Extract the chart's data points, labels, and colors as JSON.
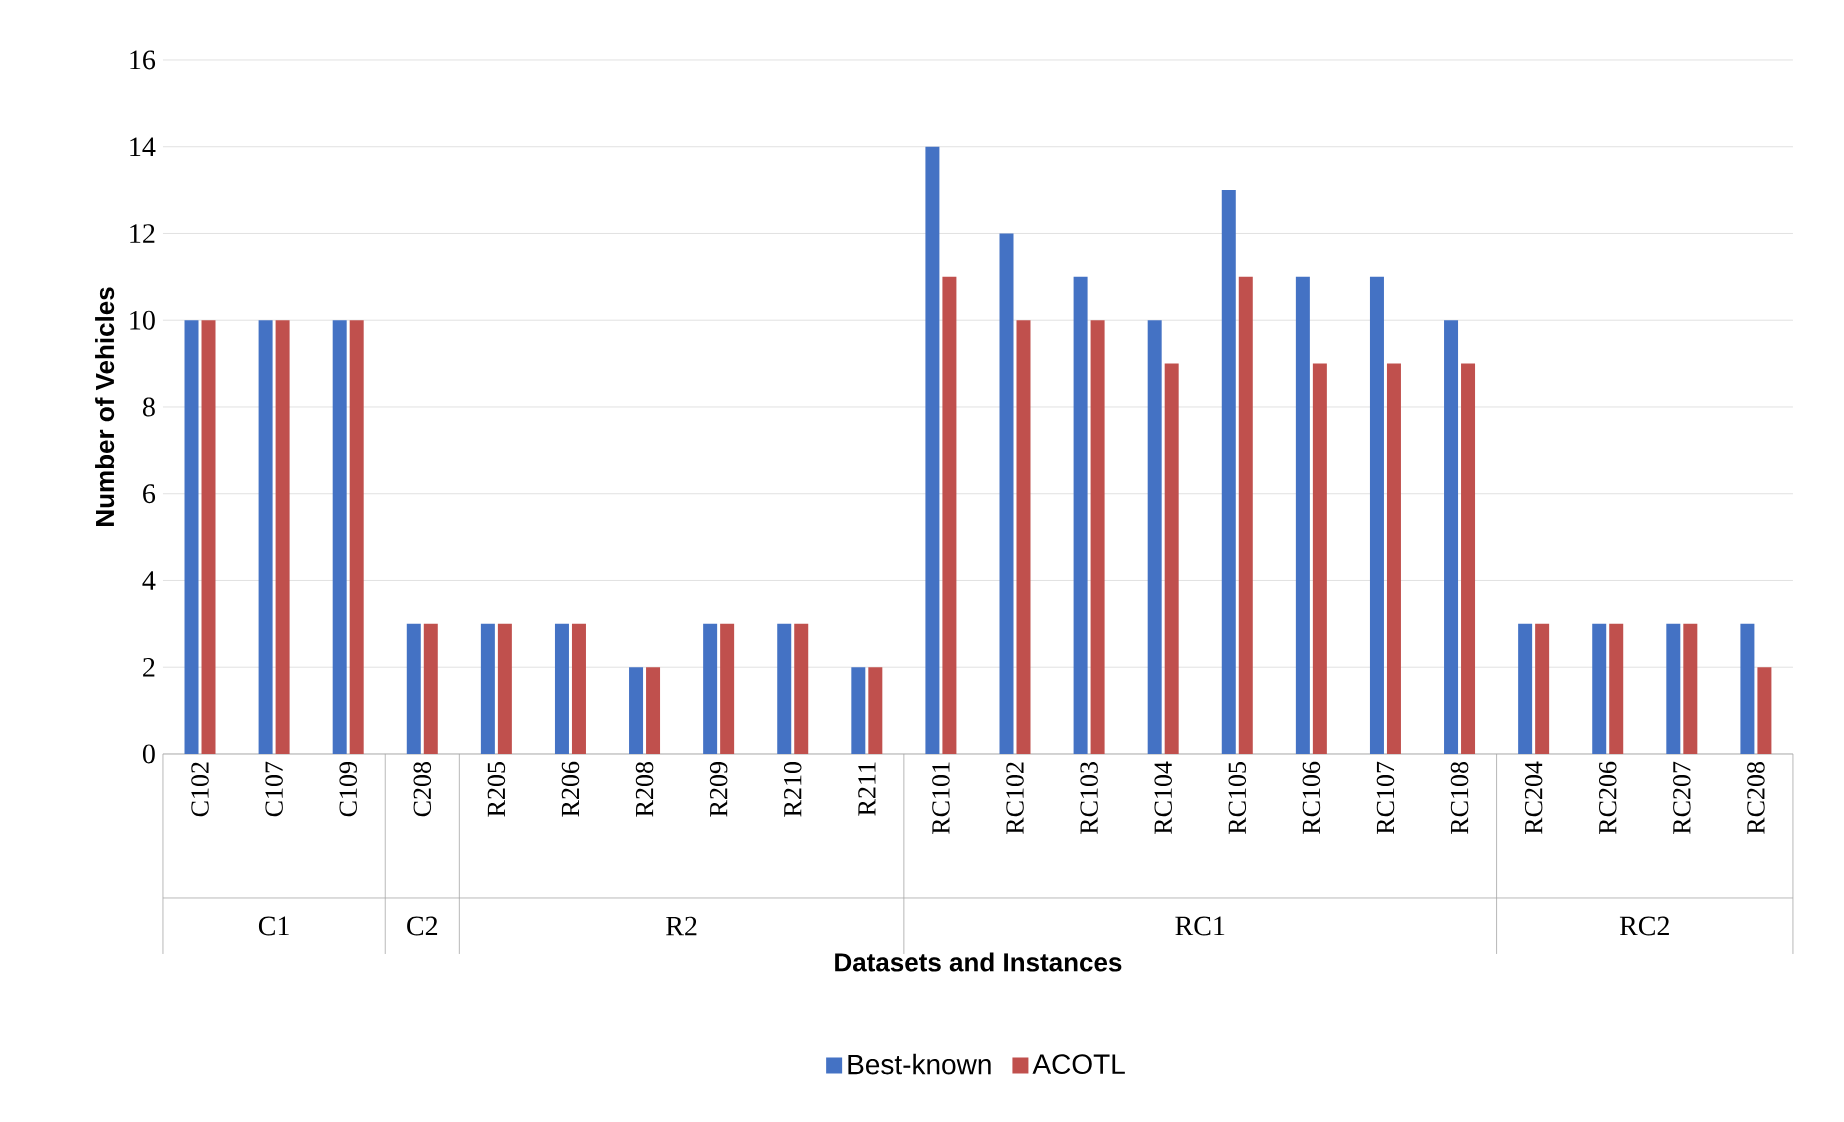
{
  "chart_data": {
    "type": "bar",
    "xlabel": "Datasets and Instances",
    "ylabel": "Number of Vehicles",
    "categories": [
      "C102",
      "C107",
      "C109",
      "C208",
      "R205",
      "R206",
      "R208",
      "R209",
      "R210",
      "R211",
      "RC101",
      "RC102",
      "RC103",
      "RC104",
      "RC105",
      "RC106",
      "RC107",
      "RC108",
      "RC204",
      "RC206",
      "RC207",
      "RC208"
    ],
    "series": [
      {
        "name": "Best-known",
        "color": "#4472c4",
        "values": [
          10,
          10,
          10,
          3,
          3,
          3,
          2,
          3,
          3,
          2,
          14,
          12,
          11,
          10,
          13,
          11,
          11,
          10,
          3,
          3,
          3,
          3
        ]
      },
      {
        "name": "ACOTL",
        "color": "#c0504d",
        "values": [
          10,
          10,
          10,
          3,
          3,
          3,
          2,
          3,
          3,
          2,
          11,
          10,
          10,
          9,
          11,
          9,
          9,
          9,
          3,
          3,
          3,
          2
        ]
      }
    ],
    "annotations": [
      "C1",
      "C2",
      "R2",
      "RC1",
      "RC2"
    ],
    "ylim": [
      0,
      16
    ],
    "yticks": [
      0,
      2,
      4,
      6,
      8,
      10,
      12,
      14,
      16
    ],
    "grid": "y",
    "legend": "bottom"
  }
}
